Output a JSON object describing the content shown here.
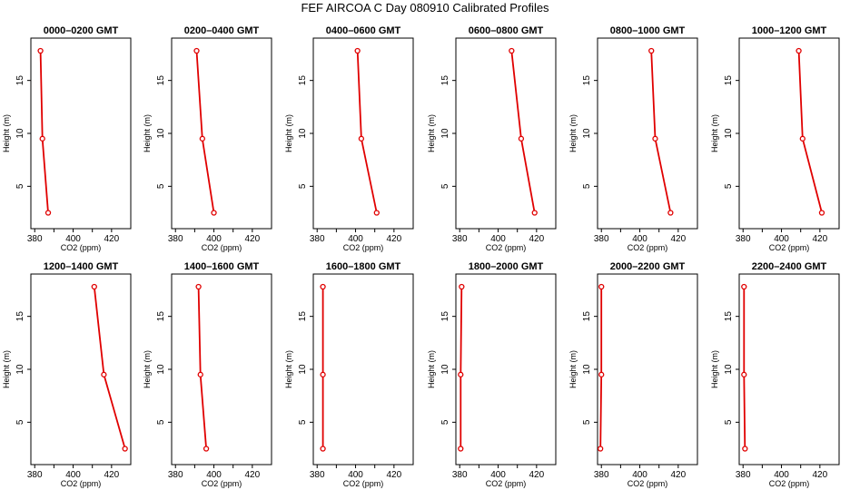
{
  "title": "FEF AIRCOA C  Day 080910  Calibrated Profiles",
  "chart_data": [
    {
      "type": "line",
      "title": "0000–0200 GMT",
      "xlabel": "CO2 (ppm)",
      "ylabel": "Height (m)",
      "x": [
        383,
        384,
        387
      ],
      "y": [
        17.8,
        9.5,
        2.5
      ],
      "xlim": [
        378,
        430
      ],
      "ylim": [
        1,
        19
      ],
      "xticks": [
        "380",
        "400",
        "420"
      ],
      "yticks": [
        "5",
        "10",
        "15"
      ]
    },
    {
      "type": "line",
      "title": "0200–0400 GMT",
      "xlabel": "CO2 (ppm)",
      "ylabel": "Height (m)",
      "x": [
        391,
        394,
        400
      ],
      "y": [
        17.8,
        9.5,
        2.5
      ],
      "xlim": [
        378,
        430
      ],
      "ylim": [
        1,
        19
      ],
      "xticks": [
        "380",
        "400",
        "420"
      ],
      "yticks": [
        "5",
        "10",
        "15"
      ]
    },
    {
      "type": "line",
      "title": "0400–0600 GMT",
      "xlabel": "CO2 (ppm)",
      "ylabel": "Height (m)",
      "x": [
        401,
        403,
        411
      ],
      "y": [
        17.8,
        9.5,
        2.5
      ],
      "xlim": [
        378,
        430
      ],
      "ylim": [
        1,
        19
      ],
      "xticks": [
        "380",
        "400",
        "420"
      ],
      "yticks": [
        "5",
        "10",
        "15"
      ]
    },
    {
      "type": "line",
      "title": "0600–0800 GMT",
      "xlabel": "CO2 (ppm)",
      "ylabel": "Height (m)",
      "x": [
        407,
        412,
        419
      ],
      "y": [
        17.8,
        9.5,
        2.5
      ],
      "xlim": [
        378,
        430
      ],
      "ylim": [
        1,
        19
      ],
      "xticks": [
        "380",
        "400",
        "420"
      ],
      "yticks": [
        "5",
        "10",
        "15"
      ]
    },
    {
      "type": "line",
      "title": "0800–1000 GMT",
      "xlabel": "CO2 (ppm)",
      "ylabel": "Height (m)",
      "x": [
        406,
        408,
        416
      ],
      "y": [
        17.8,
        9.5,
        2.5
      ],
      "xlim": [
        378,
        430
      ],
      "ylim": [
        1,
        19
      ],
      "xticks": [
        "380",
        "400",
        "420"
      ],
      "yticks": [
        "5",
        "10",
        "15"
      ]
    },
    {
      "type": "line",
      "title": "1000–1200 GMT",
      "xlabel": "CO2 (ppm)",
      "ylabel": "Height (m)",
      "x": [
        409,
        411,
        421
      ],
      "y": [
        17.8,
        9.5,
        2.5
      ],
      "xlim": [
        378,
        430
      ],
      "ylim": [
        1,
        19
      ],
      "xticks": [
        "380",
        "400",
        "420"
      ],
      "yticks": [
        "5",
        "10",
        "15"
      ]
    },
    {
      "type": "line",
      "title": "1200–1400 GMT",
      "xlabel": "CO2 (ppm)",
      "ylabel": "Height (m)",
      "x": [
        411,
        416,
        427
      ],
      "y": [
        17.8,
        9.5,
        2.5
      ],
      "xlim": [
        378,
        430
      ],
      "ylim": [
        1,
        19
      ],
      "xticks": [
        "380",
        "400",
        "420"
      ],
      "yticks": [
        "5",
        "10",
        "15"
      ]
    },
    {
      "type": "line",
      "title": "1400–1600 GMT",
      "xlabel": "CO2 (ppm)",
      "ylabel": "Height (m)",
      "x": [
        392,
        393,
        396
      ],
      "y": [
        17.8,
        9.5,
        2.5
      ],
      "xlim": [
        378,
        430
      ],
      "ylim": [
        1,
        19
      ],
      "xticks": [
        "380",
        "400",
        "420"
      ],
      "yticks": [
        "5",
        "10",
        "15"
      ]
    },
    {
      "type": "line",
      "title": "1600–1800 GMT",
      "xlabel": "CO2 (ppm)",
      "ylabel": "Height (m)",
      "x": [
        383,
        383,
        383
      ],
      "y": [
        17.8,
        9.5,
        2.5
      ],
      "xlim": [
        378,
        430
      ],
      "ylim": [
        1,
        19
      ],
      "xticks": [
        "380",
        "400",
        "420"
      ],
      "yticks": [
        "5",
        "10",
        "15"
      ]
    },
    {
      "type": "line",
      "title": "1800–2000 GMT",
      "xlabel": "CO2 (ppm)",
      "ylabel": "Height (m)",
      "x": [
        381,
        380.5,
        380.5
      ],
      "y": [
        17.8,
        9.5,
        2.5
      ],
      "xlim": [
        378,
        430
      ],
      "ylim": [
        1,
        19
      ],
      "xticks": [
        "380",
        "400",
        "420"
      ],
      "yticks": [
        "5",
        "10",
        "15"
      ]
    },
    {
      "type": "line",
      "title": "2000–2200 GMT",
      "xlabel": "CO2 (ppm)",
      "ylabel": "Height (m)",
      "x": [
        380,
        380,
        379.5
      ],
      "y": [
        17.8,
        9.5,
        2.5
      ],
      "xlim": [
        378,
        430
      ],
      "ylim": [
        1,
        19
      ],
      "xticks": [
        "380",
        "400",
        "420"
      ],
      "yticks": [
        "5",
        "10",
        "15"
      ]
    },
    {
      "type": "line",
      "title": "2200–2400 GMT",
      "xlabel": "CO2 (ppm)",
      "ylabel": "Height (m)",
      "x": [
        380.5,
        380.5,
        381
      ],
      "y": [
        17.8,
        9.5,
        2.5
      ],
      "xlim": [
        378,
        430
      ],
      "ylim": [
        1,
        19
      ],
      "xticks": [
        "380",
        "400",
        "420"
      ],
      "yticks": [
        "5",
        "10",
        "15"
      ]
    }
  ]
}
